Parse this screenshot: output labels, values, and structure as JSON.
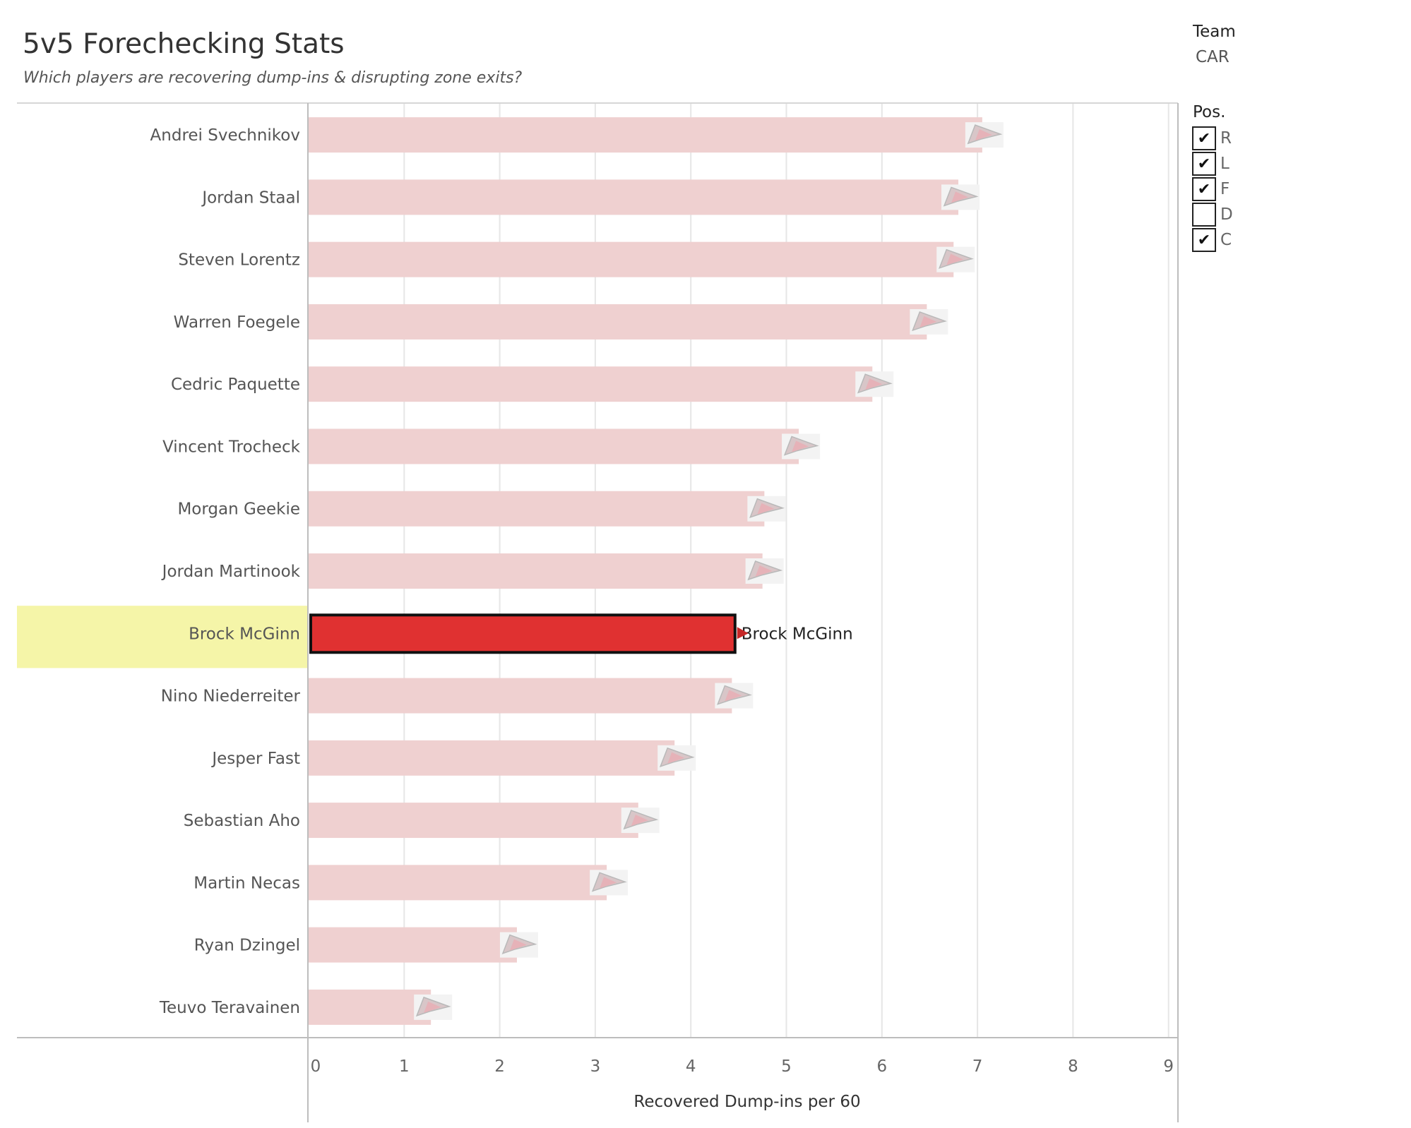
{
  "header": {
    "title": "5v5 Forechecking Stats",
    "subtitle": "Which players are recovering dump-ins & disrupting zone exits?"
  },
  "filters": {
    "team": {
      "label": "Team",
      "value": "CAR"
    },
    "position": {
      "label": "Pos.",
      "options": [
        {
          "label": "R",
          "checked": true
        },
        {
          "label": "L",
          "checked": true
        },
        {
          "label": "F",
          "checked": true
        },
        {
          "label": "D",
          "checked": false
        },
        {
          "label": "C",
          "checked": true
        }
      ]
    }
  },
  "colors": {
    "bar": "#efd0d0",
    "highlight_bar": "#e03131",
    "highlight_row": "#f5f5a8",
    "grid": "#e6e6e6",
    "axis": "#bdbdbd"
  },
  "chart_data": {
    "type": "bar",
    "orientation": "horizontal",
    "categories": [
      "Andrei Svechnikov",
      "Jordan Staal",
      "Steven Lorentz",
      "Warren Foegele",
      "Cedric Paquette",
      "Vincent Trocheck",
      "Morgan Geekie",
      "Jordan Martinook",
      "Brock McGinn",
      "Nino Niederreiter",
      "Jesper Fast",
      "Sebastian Aho",
      "Martin Necas",
      "Ryan Dzingel",
      "Teuvo Teravainen"
    ],
    "values": [
      7.05,
      6.8,
      6.75,
      6.47,
      5.9,
      5.13,
      4.77,
      4.75,
      4.47,
      4.43,
      3.83,
      3.45,
      3.12,
      2.18,
      1.28
    ],
    "highlighted": "Brock McGinn",
    "highlight_label": "Brock McGinn",
    "marker_icon": "team-logo-icon",
    "xlabel": "Recovered Dump-ins per 60",
    "ylabel": "",
    "xlim": [
      0,
      9
    ],
    "xticks": [
      "0",
      "1",
      "2",
      "3",
      "4",
      "5",
      "6",
      "7",
      "8",
      "9"
    ],
    "grid": true
  }
}
